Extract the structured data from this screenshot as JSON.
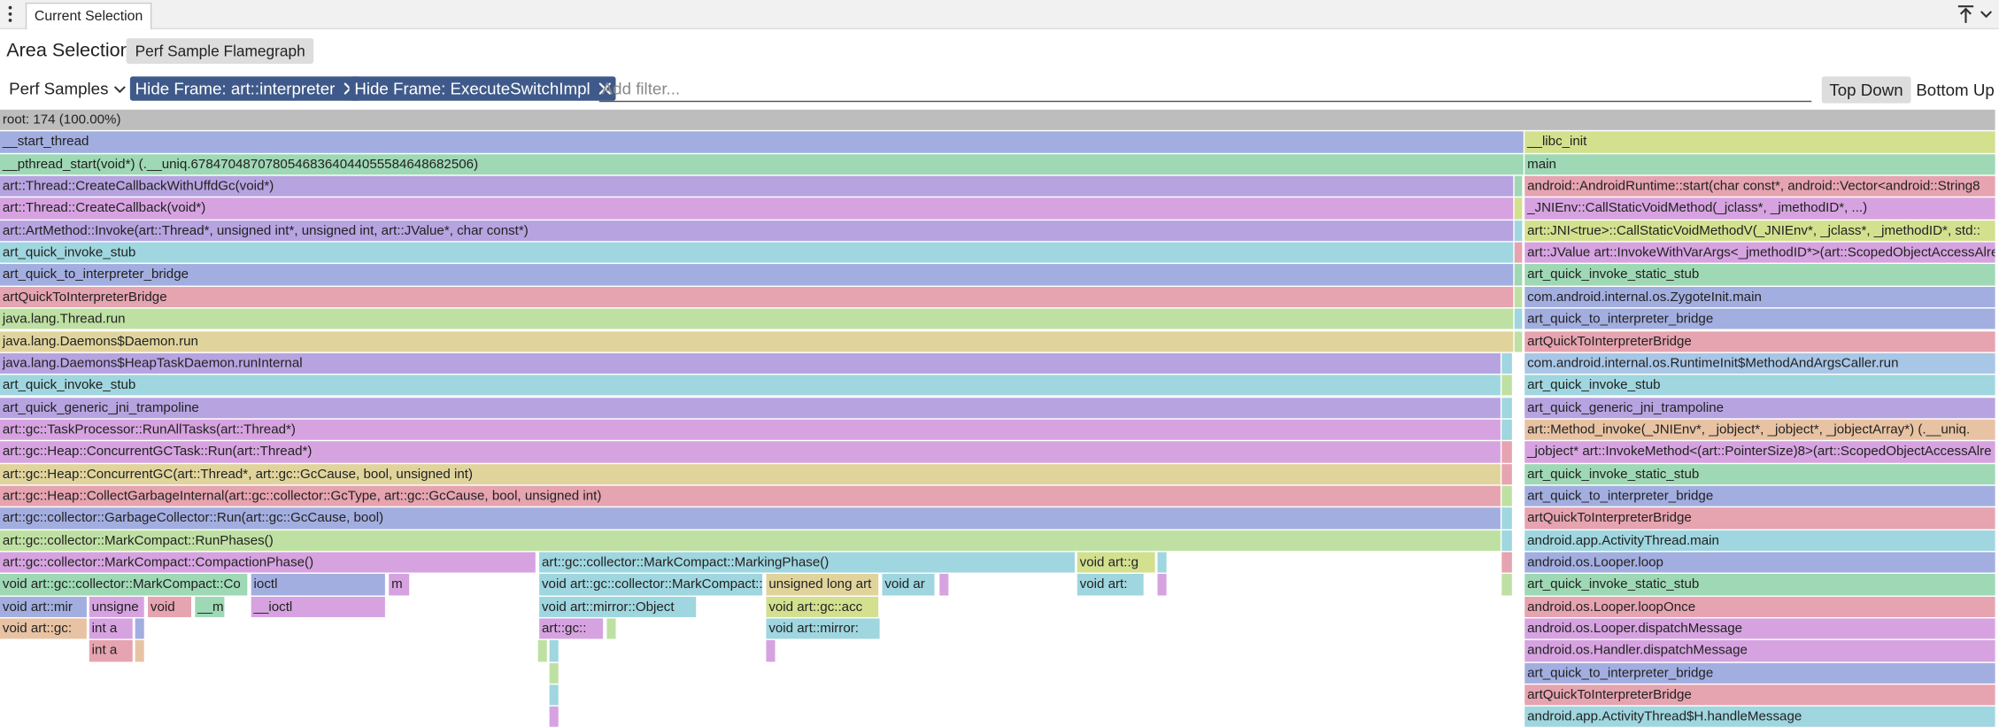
{
  "tab": "Current Selection",
  "header": {
    "title": "Area Selection",
    "button": "Perf Sample Flamegraph"
  },
  "toolbar": {
    "select": "Perf Samples",
    "filters": [
      "Hide Frame: art::interpreter",
      "Hide Frame: ExecuteSwitchImpl"
    ],
    "placeholder": "Add filter...",
    "top_down": "Top Down",
    "bottom_up": "Bottom Up"
  },
  "flamegraph": {
    "frames": [
      "root: 174 (100.00%)",
      "__start_thread",
      "__libc_init",
      "__pthread_start(void*) (.__uniq.67847048707805468364044055584648682506)",
      "main",
      "art::Thread::CreateCallbackWithUffdGc(void*)",
      "android::AndroidRuntime::start(char const*, android::Vector<android::String8",
      "art::Thread::CreateCallback(void*)",
      "_JNIEnv::CallStaticVoidMethod(_jclass*, _jmethodID*, ...)",
      "art::ArtMethod::Invoke(art::Thread*, unsigned int*, unsigned int, art::JValue*, char const*)",
      "art::JNI<true>::CallStaticVoidMethodV(_JNIEnv*, _jclass*, _jmethodID*, std::",
      "art_quick_invoke_stub",
      "art::JValue art::InvokeWithVarArgs<_jmethodID*>(art::ScopedObjectAccessAlre",
      "art_quick_to_interpreter_bridge",
      "art_quick_invoke_static_stub",
      "artQuickToInterpreterBridge",
      "com.android.internal.os.ZygoteInit.main",
      "java.lang.Thread.run",
      "art_quick_to_interpreter_bridge",
      "java.lang.Daemons$Daemon.run",
      "artQuickToInterpreterBridge",
      "java.lang.Daemons$HeapTaskDaemon.runInternal",
      "com.android.internal.os.RuntimeInit$MethodAndArgsCaller.run",
      "art_quick_invoke_stub",
      "art_quick_invoke_stub",
      "art_quick_generic_jni_trampoline",
      "art_quick_generic_jni_trampoline",
      "art::gc::TaskProcessor::RunAllTasks(art::Thread*)",
      "art::Method_invoke(_JNIEnv*, _jobject*, _jobject*, _jobjectArray*) (.__uniq.",
      "art::gc::Heap::ConcurrentGCTask::Run(art::Thread*)",
      "_jobject* art::InvokeMethod<(art::PointerSize)8>(art::ScopedObjectAccessAlre",
      "art::gc::Heap::ConcurrentGC(art::Thread*, art::gc::GcCause, bool, unsigned int)",
      "art_quick_invoke_static_stub",
      "art::gc::Heap::CollectGarbageInternal(art::gc::collector::GcType, art::gc::GcCause, bool, unsigned int)",
      "art_quick_to_interpreter_bridge",
      "art::gc::collector::GarbageCollector::Run(art::gc::GcCause, bool)",
      "artQuickToInterpreterBridge",
      "art::gc::collector::MarkCompact::RunPhases()",
      "android.app.ActivityThread.main",
      "art::gc::collector::MarkCompact::CompactionPhase()",
      "art::gc::collector::MarkCompact::MarkingPhase()",
      "void art::g",
      "android.os.Looper.loop",
      "void art::gc::collector::MarkCompact::Co",
      "ioctl",
      "m",
      "void art::gc::collector::MarkCompact::Mar",
      "unsigned long art",
      "void ar",
      "void art:",
      "art_quick_invoke_static_stub",
      "void art::mir",
      "unsigne",
      "void",
      "__m",
      "__ioctl",
      "void art::mirror::Object",
      "void art::gc::acc",
      "android.os.Looper.loopOnce",
      "void art::gc:",
      "int a",
      "art::gc::",
      "void art::mirror:",
      "android.os.Looper.dispatchMessage",
      "int a",
      "android.os.Handler.dispatchMessage",
      "art_quick_to_interpreter_bridge",
      "artQuickToInterpreterBridge",
      "android.app.ActivityThread$H.handleMessage"
    ]
  }
}
